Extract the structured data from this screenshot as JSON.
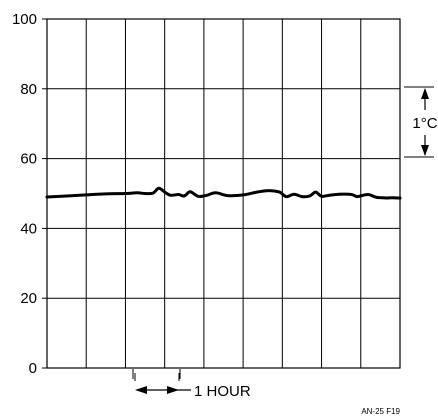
{
  "colors": {
    "line": "#000000",
    "grid": "#000000",
    "background": "#ffffff"
  },
  "annotations": {
    "scale_label": "1°C",
    "time_label": "1 HOUR"
  },
  "figure_id": "AN-25 F19",
  "chart_data": {
    "type": "line",
    "title": "",
    "xlabel": "",
    "ylabel": "",
    "ylim": [
      0,
      100
    ],
    "xlim": [
      0,
      9
    ],
    "grid": true,
    "yticks": [
      0,
      20,
      40,
      60,
      80,
      100
    ],
    "ytick_labels": [
      "0",
      "20",
      "40",
      "60",
      "80",
      "100"
    ],
    "vertical_gridlines": 9,
    "series": [
      {
        "x": [
          0,
          0.5,
          1,
          1.5,
          2,
          2.3,
          2.5,
          2.7,
          2.85,
          3.0,
          3.15,
          3.35,
          3.5,
          3.65,
          3.85,
          4.05,
          4.3,
          4.6,
          5,
          5.35,
          5.6,
          5.8,
          5.95,
          6.1,
          6.3,
          6.5,
          6.7,
          6.85,
          7.0,
          7.2,
          7.45,
          7.7,
          7.8,
          7.9,
          8.0,
          8.1,
          8.2,
          8.3,
          8.4,
          8.5,
          8.65,
          8.8,
          9.0
        ],
        "y": [
          49,
          49.3,
          49.6,
          49.9,
          50.0,
          50.2,
          50.0,
          50.1,
          51.5,
          50.4,
          49.5,
          49.7,
          49.3,
          50.5,
          49.2,
          49.4,
          50.2,
          49.4,
          49.6,
          50.4,
          50.8,
          50.7,
          50.3,
          49.1,
          49.8,
          49.1,
          49.3,
          50.4,
          49.2,
          49.5,
          49.8,
          49.8,
          49.6,
          49.1,
          49.3,
          49.6,
          49.7,
          49.3,
          48.9,
          48.8,
          48.7,
          48.8,
          48.7
        ]
      }
    ]
  }
}
